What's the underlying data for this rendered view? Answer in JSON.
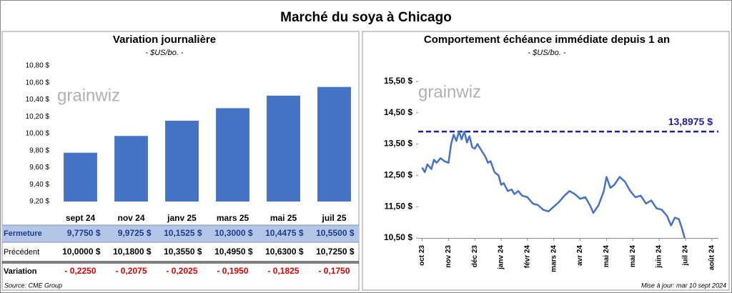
{
  "title": "Marché du soya à Chicago",
  "watermark": "grainwiz",
  "chart_data": [
    {
      "type": "bar",
      "title": "Variation journalière",
      "subtitle": "- $US/bo. -",
      "categories": [
        "sept 24",
        "nov 24",
        "janv 25",
        "mars 25",
        "mai 25",
        "juil 25"
      ],
      "values": [
        9.775,
        9.9725,
        10.1525,
        10.3,
        10.4475,
        10.55
      ],
      "color": "#4472c4",
      "grid": false,
      "ylim": [
        9.2,
        10.8
      ],
      "yticks": [
        {
          "value": 9.2,
          "label": "9,20 $"
        },
        {
          "value": 9.4,
          "label": "9,40 $"
        },
        {
          "value": 9.6,
          "label": "9,60 $"
        },
        {
          "value": 9.8,
          "label": "9,80 $"
        },
        {
          "value": 10.0,
          "label": "10,00 $"
        },
        {
          "value": 10.2,
          "label": "10,20 $"
        },
        {
          "value": 10.4,
          "label": "10,40 $"
        },
        {
          "value": 10.6,
          "label": "10,60 $"
        },
        {
          "value": 10.8,
          "label": "10,80 $"
        }
      ]
    },
    {
      "type": "line",
      "title": "Comportement  échéance immédiate depuis 1 an",
      "subtitle": "- $US/bo. -",
      "color": "#4472c4",
      "grid": false,
      "x": [
        0,
        0.1,
        0.2,
        0.35,
        0.45,
        0.55,
        0.7,
        0.85,
        1.0,
        1.1,
        1.2,
        1.3,
        1.4,
        1.5,
        1.6,
        1.7,
        1.8,
        1.9,
        2.0,
        2.1,
        2.25,
        2.4,
        2.5,
        2.6,
        2.75,
        2.9,
        3.0,
        3.1,
        3.25,
        3.4,
        3.5,
        3.65,
        3.8,
        4.0,
        4.2,
        4.4,
        4.6,
        4.8,
        5.0,
        5.2,
        5.4,
        5.6,
        5.8,
        6.0,
        6.2,
        6.4,
        6.5,
        6.7,
        6.9,
        7.0,
        7.15,
        7.3,
        7.5,
        7.7,
        7.9,
        8.1,
        8.3,
        8.5,
        8.7,
        8.9,
        9.1,
        9.3,
        9.45,
        9.6,
        9.75,
        9.85,
        9.97
      ],
      "values": [
        12.75,
        12.6,
        12.85,
        12.7,
        13.0,
        12.9,
        13.05,
        12.95,
        12.9,
        13.5,
        13.8,
        13.6,
        13.9,
        13.65,
        13.9,
        13.55,
        13.75,
        13.4,
        13.35,
        13.5,
        13.3,
        13.1,
        12.9,
        12.95,
        12.6,
        12.5,
        12.2,
        12.25,
        12.0,
        12.05,
        11.9,
        12.0,
        11.85,
        11.8,
        11.6,
        11.55,
        11.4,
        11.35,
        11.5,
        11.65,
        11.85,
        12.0,
        11.9,
        11.75,
        11.8,
        11.5,
        11.3,
        11.55,
        12.0,
        12.45,
        12.1,
        12.2,
        12.45,
        12.3,
        12.0,
        11.8,
        11.85,
        11.6,
        11.7,
        11.45,
        11.4,
        11.2,
        10.9,
        11.15,
        11.1,
        10.85,
        10.5
      ],
      "xlim": [
        -0.15,
        11.25
      ],
      "xticks": [
        {
          "value": 0,
          "label": "oct 23"
        },
        {
          "value": 1,
          "label": "nov 23"
        },
        {
          "value": 2,
          "label": "déc 23"
        },
        {
          "value": 3,
          "label": "janv 24"
        },
        {
          "value": 4,
          "label": "févr 24"
        },
        {
          "value": 5,
          "label": "mars 24"
        },
        {
          "value": 6,
          "label": "avr 24"
        },
        {
          "value": 7,
          "label": "mai 24"
        },
        {
          "value": 8,
          "label": "mai 24"
        },
        {
          "value": 9,
          "label": "juin 24"
        },
        {
          "value": 10,
          "label": "juil 24"
        },
        {
          "value": 11,
          "label": "août 24"
        }
      ],
      "ylim": [
        10.5,
        16.0
      ],
      "yticks": [
        {
          "value": 10.5,
          "label": "10,50 $"
        },
        {
          "value": 11.5,
          "label": "11,50 $"
        },
        {
          "value": 12.5,
          "label": "12,50 $"
        },
        {
          "value": 13.5,
          "label": "13,50 $"
        },
        {
          "value": 14.5,
          "label": "14,50 $"
        },
        {
          "value": 15.5,
          "label": "15,50 $"
        }
      ],
      "reference": {
        "value": 13.8975,
        "label": "13,8975 $",
        "color": "#1f1fa0"
      }
    }
  ],
  "table": {
    "rows": [
      [
        "Fermeture",
        "9,7750  $",
        "9,9725  $",
        "10,1525  $",
        "10,3000  $",
        "10,4475  $",
        "10,5500  $"
      ],
      [
        "Précédent",
        "10,0000  $",
        "10,1800  $",
        "10,3550  $",
        "10,4950  $",
        "10,6300  $",
        "10,7250  $"
      ],
      [
        "Variation",
        "- 0,2250",
        "- 0,2075",
        "- 0,2025",
        "- 0,1950",
        "- 0,1825",
        "- 0,1750"
      ]
    ]
  },
  "source": "Source: CME Group",
  "updated": "Mise à jour: mar 10 sept 2024"
}
